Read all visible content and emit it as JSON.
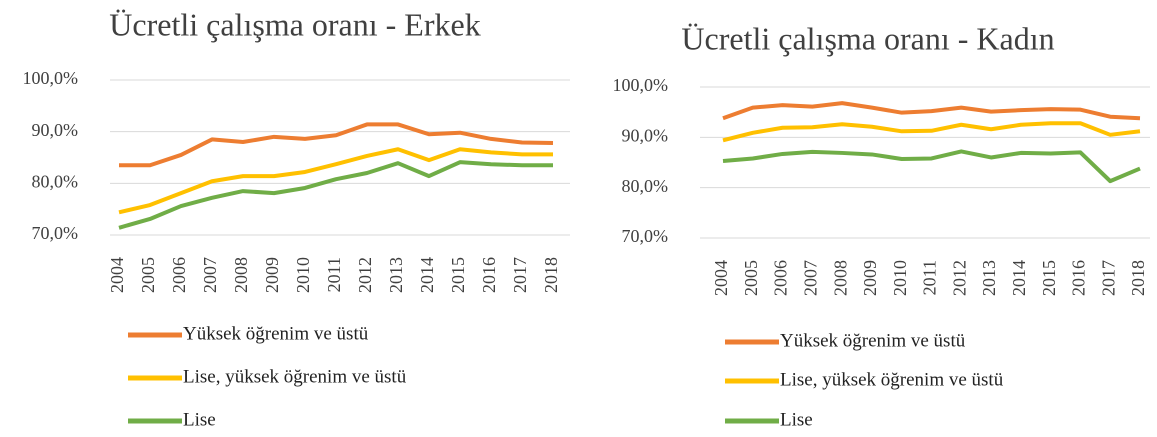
{
  "chart_data": [
    {
      "type": "line",
      "title": "Ücretli çalışma oranı - Erkek",
      "categories": [
        "2004",
        "2005",
        "2006",
        "2007",
        "2008",
        "2009",
        "2010",
        "2011",
        "2012",
        "2013",
        "2014",
        "2015",
        "2016",
        "2017",
        "2018"
      ],
      "series": [
        {
          "name": "Yüksek öğrenim ve üstü",
          "color": "#ed7d31",
          "values": [
            83.5,
            83.5,
            85.5,
            88.5,
            88.0,
            89.0,
            88.6,
            89.3,
            91.4,
            91.4,
            89.5,
            89.8,
            88.6,
            87.9,
            87.8
          ]
        },
        {
          "name": "Lise, yüksek öğrenim ve üstü",
          "color": "#ffc000",
          "values": [
            74.4,
            75.8,
            78.1,
            80.4,
            81.4,
            81.4,
            82.2,
            83.7,
            85.3,
            86.6,
            84.5,
            86.6,
            86.0,
            85.6,
            85.6
          ]
        },
        {
          "name": "Lise",
          "color": "#70ad47",
          "values": [
            71.4,
            73.1,
            75.6,
            77.2,
            78.5,
            78.1,
            79.1,
            80.8,
            82.0,
            83.9,
            81.4,
            84.1,
            83.7,
            83.5,
            83.5
          ]
        }
      ],
      "ylim": [
        70,
        100
      ],
      "yticks": [
        {
          "value": 70,
          "label": "70,0%"
        },
        {
          "value": 80,
          "label": "80,0%"
        },
        {
          "value": 90,
          "label": "90,0%"
        },
        {
          "value": 100,
          "label": "100,0%"
        }
      ],
      "grid": true,
      "legend": "bottom"
    },
    {
      "type": "line",
      "title": "Ücretli çalışma oranı - Kadın",
      "categories": [
        "2004",
        "2005",
        "2006",
        "2007",
        "2008",
        "2009",
        "2010",
        "2011",
        "2012",
        "2013",
        "2014",
        "2015",
        "2016",
        "2017",
        "2018"
      ],
      "series": [
        {
          "name": "Yüksek öğrenim ve üstü",
          "color": "#ed7d31",
          "values": [
            93.8,
            95.9,
            96.4,
            96.1,
            96.8,
            95.9,
            94.9,
            95.2,
            95.9,
            95.1,
            95.4,
            95.6,
            95.5,
            94.1,
            93.8
          ]
        },
        {
          "name": "Lise, yüksek öğrenim ve üstü",
          "color": "#ffc000",
          "values": [
            89.4,
            90.9,
            91.9,
            92.0,
            92.6,
            92.1,
            91.2,
            91.3,
            92.5,
            91.6,
            92.5,
            92.8,
            92.8,
            90.5,
            91.2
          ]
        },
        {
          "name": "Lise",
          "color": "#70ad47",
          "values": [
            85.3,
            85.8,
            86.7,
            87.1,
            86.9,
            86.6,
            85.7,
            85.8,
            87.2,
            86.0,
            86.9,
            86.8,
            87.0,
            81.3,
            83.8
          ]
        }
      ],
      "ylim": [
        70,
        100
      ],
      "yticks": [
        {
          "value": 70,
          "label": "70,0%"
        },
        {
          "value": 80,
          "label": "80,0%"
        },
        {
          "value": 90,
          "label": "90,0%"
        },
        {
          "value": 100,
          "label": "100,0%"
        }
      ],
      "grid": true,
      "legend": "bottom"
    }
  ]
}
